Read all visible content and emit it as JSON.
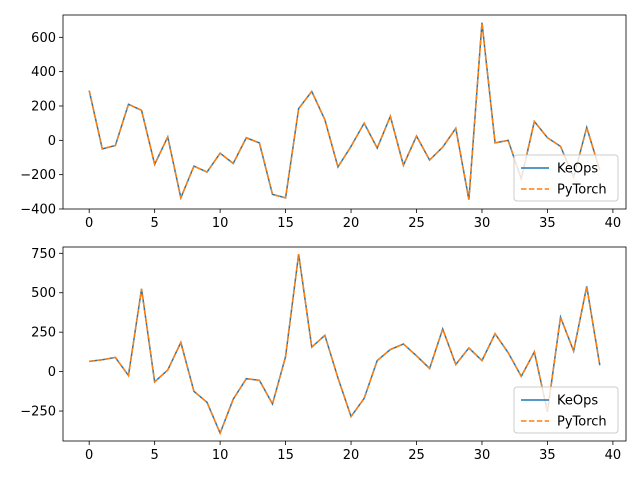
{
  "colors": {
    "series_keops": "#1f77b4",
    "series_pytorch": "#ff7f0e",
    "axes": "#000000",
    "background": "#ffffff"
  },
  "chart_data": [
    {
      "type": "line",
      "grid": false,
      "legend_placement": "lower-right",
      "xlim": [
        -2,
        41
      ],
      "ylim": [
        -400,
        730
      ],
      "xticks": [
        0,
        5,
        10,
        15,
        20,
        25,
        30,
        35,
        40
      ],
      "yticks": [
        -400,
        -200,
        0,
        200,
        400,
        600
      ],
      "x": [
        0,
        1,
        2,
        3,
        4,
        5,
        6,
        7,
        8,
        9,
        10,
        11,
        12,
        13,
        14,
        15,
        16,
        17,
        18,
        19,
        20,
        21,
        22,
        23,
        24,
        25,
        26,
        27,
        28,
        29,
        30,
        31,
        32,
        33,
        34,
        35,
        36,
        37,
        38,
        39
      ],
      "series": [
        {
          "name": "KeOps",
          "style": "solid",
          "values": [
            290,
            -50,
            -30,
            210,
            175,
            -140,
            20,
            -335,
            -150,
            -185,
            -75,
            -135,
            15,
            -15,
            -315,
            -335,
            185,
            285,
            120,
            -155,
            -35,
            100,
            -45,
            140,
            -145,
            25,
            -115,
            -40,
            70,
            -345,
            685,
            -15,
            0,
            -225,
            110,
            15,
            -35,
            -215,
            75,
            -175
          ]
        },
        {
          "name": "PyTorch",
          "style": "dashed",
          "values": [
            290,
            -50,
            -30,
            210,
            175,
            -140,
            20,
            -335,
            -150,
            -185,
            -75,
            -135,
            15,
            -15,
            -315,
            -335,
            185,
            285,
            120,
            -155,
            -35,
            100,
            -45,
            140,
            -145,
            25,
            -115,
            -40,
            70,
            -345,
            685,
            -15,
            0,
            -225,
            110,
            15,
            -35,
            -215,
            75,
            -175
          ]
        }
      ]
    },
    {
      "type": "line",
      "grid": false,
      "legend_placement": "lower-right",
      "xlim": [
        -2,
        41
      ],
      "ylim": [
        -440,
        790
      ],
      "xticks": [
        0,
        5,
        10,
        15,
        20,
        25,
        30,
        35,
        40
      ],
      "yticks": [
        -250,
        0,
        250,
        500,
        750
      ],
      "x": [
        0,
        1,
        2,
        3,
        4,
        5,
        6,
        7,
        8,
        9,
        10,
        11,
        12,
        13,
        14,
        15,
        16,
        17,
        18,
        19,
        20,
        21,
        22,
        23,
        24,
        25,
        26,
        27,
        28,
        29,
        30,
        31,
        32,
        33,
        34,
        35,
        36,
        37,
        38,
        39
      ],
      "series": [
        {
          "name": "KeOps",
          "style": "solid",
          "values": [
            65,
            75,
            90,
            -25,
            525,
            -65,
            10,
            185,
            -125,
            -195,
            -390,
            -175,
            -45,
            -55,
            -205,
            95,
            745,
            155,
            230,
            -40,
            -285,
            -170,
            70,
            140,
            175,
            100,
            20,
            270,
            45,
            150,
            70,
            240,
            120,
            -30,
            125,
            -255,
            345,
            130,
            540,
            40
          ]
        },
        {
          "name": "PyTorch",
          "style": "dashed",
          "values": [
            65,
            75,
            90,
            -25,
            525,
            -65,
            10,
            185,
            -125,
            -195,
            -390,
            -175,
            -45,
            -55,
            -205,
            95,
            745,
            155,
            230,
            -40,
            -285,
            -170,
            70,
            140,
            175,
            100,
            20,
            270,
            45,
            150,
            70,
            240,
            120,
            -30,
            125,
            -255,
            345,
            130,
            540,
            40
          ]
        }
      ]
    }
  ]
}
